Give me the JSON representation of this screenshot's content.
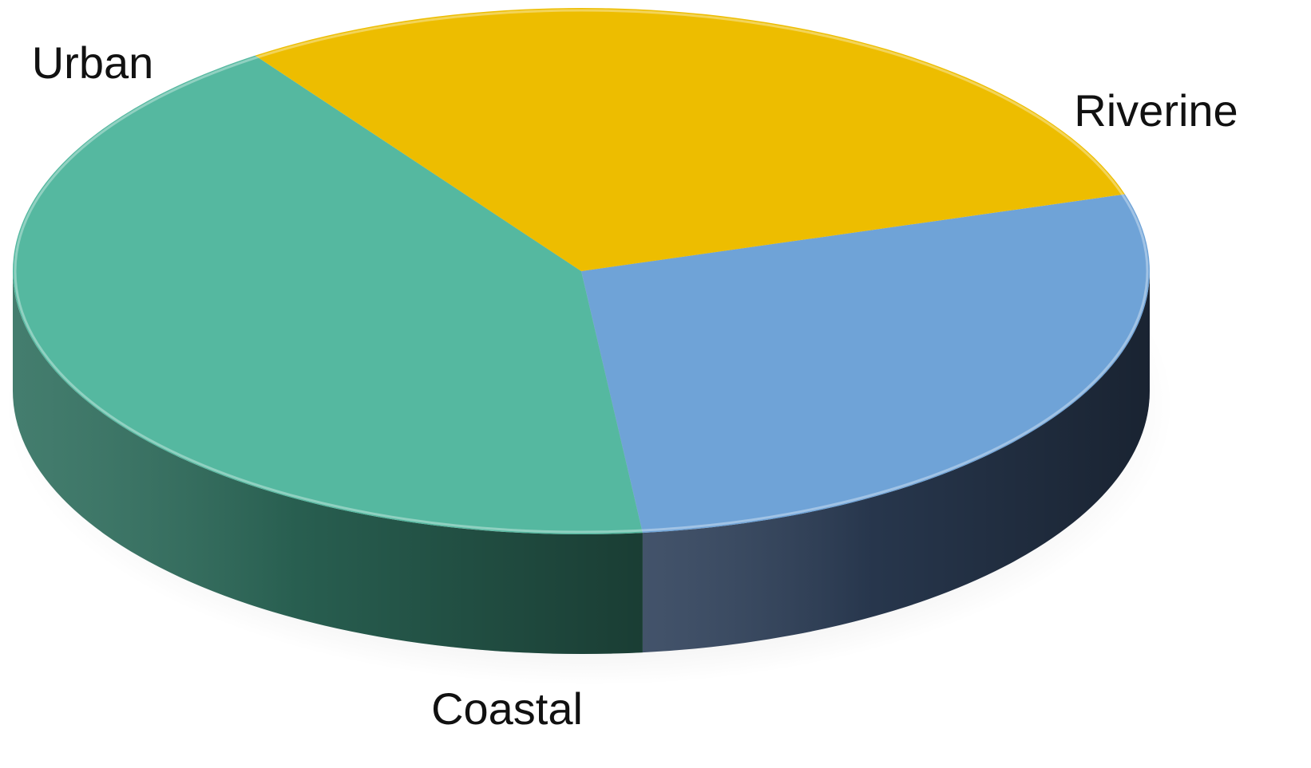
{
  "chart_data": {
    "type": "pie",
    "style": "3d",
    "categories": [
      "Riverine",
      "Coastal",
      "Urban"
    ],
    "values": [
      28,
      42,
      30
    ],
    "colors": {
      "Riverine": "#6fa3d7",
      "Coastal": "#55b8a0",
      "Urban": "#edbd00"
    },
    "side_colors": {
      "Riverine": "#2e405a",
      "Coastal": "#2f6f5e",
      "Urban": "#c79d00"
    },
    "title": "",
    "legend": "none",
    "data_labels": "category-name"
  }
}
